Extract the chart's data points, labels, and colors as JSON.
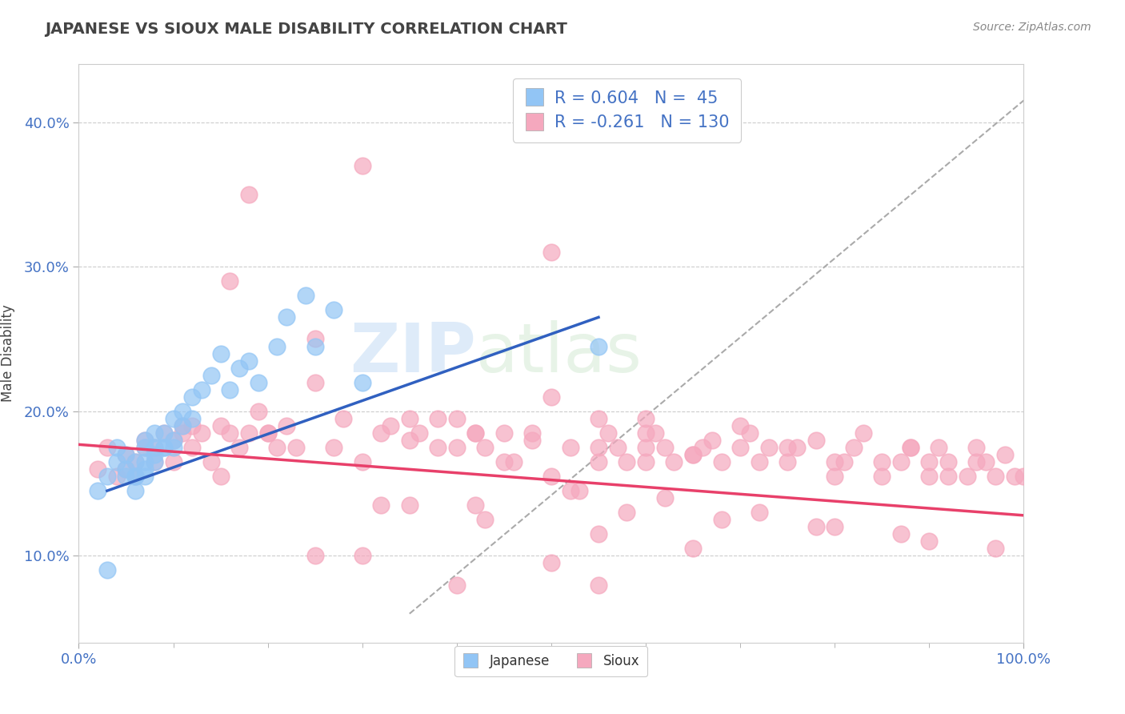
{
  "title": "JAPANESE VS SIOUX MALE DISABILITY CORRELATION CHART",
  "source_text": "Source: ZipAtlas.com",
  "ylabel": "Male Disability",
  "xlim": [
    0.0,
    1.0
  ],
  "ylim": [
    0.04,
    0.44
  ],
  "ytick_labels": [
    "10.0%",
    "20.0%",
    "30.0%",
    "40.0%"
  ],
  "ytick_values": [
    0.1,
    0.2,
    0.3,
    0.4
  ],
  "xtick_labels": [
    "0.0%",
    "100.0%"
  ],
  "xtick_values": [
    0.0,
    1.0
  ],
  "japanese_color": "#92c5f5",
  "sioux_color": "#f5a8be",
  "japanese_line_color": "#3060c0",
  "sioux_line_color": "#e8406a",
  "r_japanese": 0.604,
  "n_japanese": 45,
  "r_sioux": -0.261,
  "n_sioux": 130,
  "watermark_zip": "ZIP",
  "watermark_atlas": "atlas",
  "background_color": "#ffffff",
  "grid_color": "#cccccc",
  "title_color": "#444444",
  "axis_label_color": "#4472c4",
  "japanese_line_x": [
    0.03,
    0.55
  ],
  "japanese_line_y": [
    0.145,
    0.265
  ],
  "sioux_line_x": [
    0.0,
    1.0
  ],
  "sioux_line_y": [
    0.177,
    0.128
  ],
  "dash_line_x": [
    0.35,
    1.0
  ],
  "dash_line_y": [
    0.06,
    0.415
  ],
  "japanese_scatter_x": [
    0.02,
    0.03,
    0.03,
    0.04,
    0.04,
    0.05,
    0.05,
    0.05,
    0.06,
    0.06,
    0.06,
    0.06,
    0.07,
    0.07,
    0.07,
    0.07,
    0.07,
    0.08,
    0.08,
    0.08,
    0.08,
    0.09,
    0.09,
    0.09,
    0.1,
    0.1,
    0.1,
    0.11,
    0.11,
    0.12,
    0.12,
    0.13,
    0.14,
    0.15,
    0.16,
    0.17,
    0.18,
    0.19,
    0.21,
    0.22,
    0.24,
    0.25,
    0.27,
    0.3,
    0.55
  ],
  "japanese_scatter_y": [
    0.145,
    0.155,
    0.09,
    0.175,
    0.165,
    0.155,
    0.16,
    0.17,
    0.145,
    0.155,
    0.165,
    0.155,
    0.16,
    0.165,
    0.175,
    0.18,
    0.155,
    0.165,
    0.17,
    0.185,
    0.175,
    0.175,
    0.185,
    0.175,
    0.18,
    0.195,
    0.175,
    0.19,
    0.2,
    0.195,
    0.21,
    0.215,
    0.225,
    0.24,
    0.215,
    0.23,
    0.235,
    0.22,
    0.245,
    0.265,
    0.28,
    0.245,
    0.27,
    0.22,
    0.245
  ],
  "sioux_scatter_x": [
    0.02,
    0.03,
    0.04,
    0.05,
    0.05,
    0.06,
    0.06,
    0.07,
    0.07,
    0.08,
    0.08,
    0.09,
    0.1,
    0.1,
    0.11,
    0.11,
    0.12,
    0.12,
    0.13,
    0.14,
    0.15,
    0.16,
    0.16,
    0.17,
    0.18,
    0.18,
    0.19,
    0.2,
    0.21,
    0.22,
    0.23,
    0.25,
    0.27,
    0.28,
    0.3,
    0.3,
    0.32,
    0.33,
    0.35,
    0.36,
    0.38,
    0.4,
    0.4,
    0.42,
    0.43,
    0.45,
    0.45,
    0.46,
    0.48,
    0.5,
    0.5,
    0.52,
    0.53,
    0.55,
    0.55,
    0.56,
    0.57,
    0.58,
    0.6,
    0.6,
    0.61,
    0.62,
    0.63,
    0.65,
    0.66,
    0.67,
    0.68,
    0.7,
    0.71,
    0.72,
    0.73,
    0.75,
    0.76,
    0.78,
    0.8,
    0.81,
    0.82,
    0.83,
    0.85,
    0.85,
    0.87,
    0.88,
    0.9,
    0.9,
    0.91,
    0.92,
    0.94,
    0.95,
    0.95,
    0.96,
    0.97,
    0.98,
    0.99,
    1.0,
    0.25,
    0.15,
    0.2,
    0.35,
    0.38,
    0.42,
    0.48,
    0.55,
    0.6,
    0.65,
    0.7,
    0.75,
    0.8,
    0.88,
    0.92,
    0.25,
    0.3,
    0.4,
    0.5,
    0.55,
    0.35,
    0.43,
    0.55,
    0.65,
    0.52,
    0.62,
    0.72,
    0.8,
    0.9,
    0.32,
    0.42,
    0.58,
    0.68,
    0.78,
    0.87,
    0.97,
    0.5,
    0.6
  ],
  "sioux_scatter_y": [
    0.16,
    0.175,
    0.155,
    0.16,
    0.17,
    0.155,
    0.165,
    0.175,
    0.18,
    0.165,
    0.175,
    0.185,
    0.165,
    0.18,
    0.19,
    0.185,
    0.175,
    0.19,
    0.185,
    0.165,
    0.19,
    0.185,
    0.29,
    0.175,
    0.185,
    0.35,
    0.2,
    0.185,
    0.175,
    0.19,
    0.175,
    0.25,
    0.175,
    0.195,
    0.165,
    0.37,
    0.185,
    0.19,
    0.18,
    0.185,
    0.175,
    0.195,
    0.175,
    0.185,
    0.175,
    0.185,
    0.165,
    0.165,
    0.18,
    0.155,
    0.31,
    0.175,
    0.145,
    0.165,
    0.175,
    0.185,
    0.175,
    0.165,
    0.165,
    0.175,
    0.185,
    0.175,
    0.165,
    0.17,
    0.175,
    0.18,
    0.165,
    0.175,
    0.185,
    0.165,
    0.175,
    0.165,
    0.175,
    0.18,
    0.155,
    0.165,
    0.175,
    0.185,
    0.155,
    0.165,
    0.165,
    0.175,
    0.155,
    0.165,
    0.175,
    0.155,
    0.155,
    0.165,
    0.175,
    0.165,
    0.155,
    0.17,
    0.155,
    0.155,
    0.22,
    0.155,
    0.185,
    0.195,
    0.195,
    0.185,
    0.185,
    0.195,
    0.185,
    0.17,
    0.19,
    0.175,
    0.165,
    0.175,
    0.165,
    0.1,
    0.1,
    0.08,
    0.095,
    0.08,
    0.135,
    0.125,
    0.115,
    0.105,
    0.145,
    0.14,
    0.13,
    0.12,
    0.11,
    0.135,
    0.135,
    0.13,
    0.125,
    0.12,
    0.115,
    0.105,
    0.21,
    0.195
  ]
}
